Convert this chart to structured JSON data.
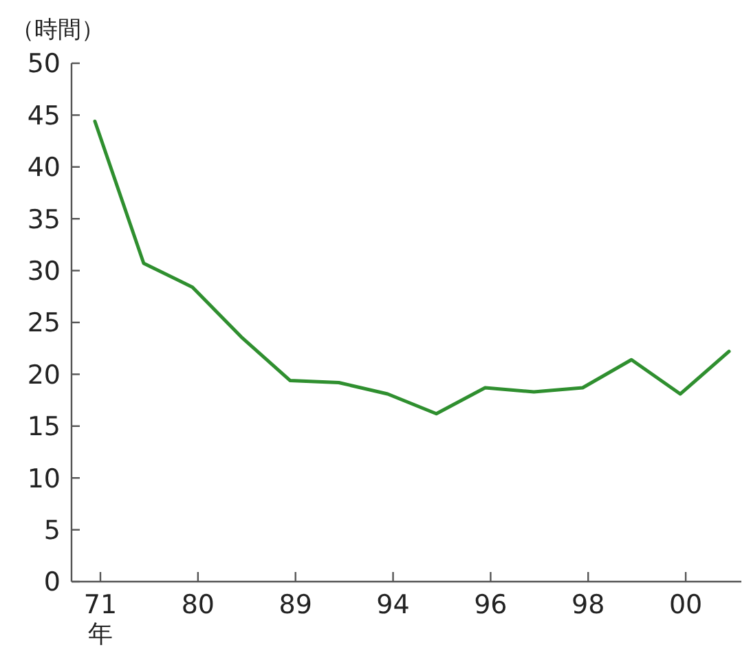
{
  "chart_data": {
    "type": "line",
    "ylabel": "（時間）",
    "xlabel": "年",
    "categories": [
      "71",
      null,
      "80",
      null,
      "89",
      null,
      "94",
      null,
      "96",
      null,
      "98",
      null,
      "00",
      null
    ],
    "series": [
      {
        "color": "#2f8f2f",
        "values": [
          44.4,
          30.7,
          28.4,
          23.6,
          19.4,
          19.2,
          18.1,
          16.2,
          18.7,
          18.3,
          18.7,
          21.4,
          18.1,
          22.2
        ]
      }
    ],
    "ylim": [
      0,
      50
    ],
    "yticks": [
      0,
      5,
      10,
      15,
      20,
      25,
      30,
      35,
      40,
      45,
      50
    ],
    "marker": "none",
    "line_style": "solid"
  }
}
